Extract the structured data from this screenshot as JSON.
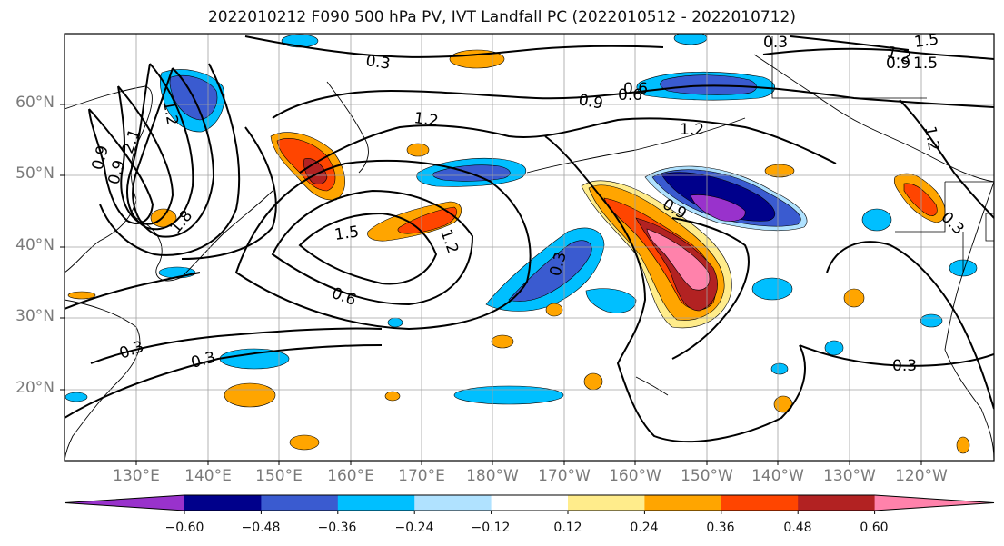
{
  "title": "2022010212 F090 500 hPa PV, IVT Landfall PC (2022010512 - 2022010712)",
  "lat_labels": [
    "60°N",
    "50°N",
    "40°N",
    "30°N",
    "20°N"
  ],
  "lon_labels": [
    "130°E",
    "140°E",
    "150°E",
    "160°E",
    "170°E",
    "180°W",
    "170°W",
    "160°W",
    "150°W",
    "140°W",
    "130°W",
    "120°W"
  ],
  "contour_labels": [
    "0.3",
    "0.6",
    "0.9",
    "1.2",
    "1.5",
    "0.3",
    "1.2",
    "1.2",
    "1.5",
    "0.6",
    "1.2",
    "0.3",
    "0.3",
    "0.9",
    "0.3",
    "0.3",
    "0.6",
    "1.2",
    "1.5",
    "0.9",
    "0.3",
    "1.2",
    "0.9",
    "2.1",
    "1.8",
    "0.9"
  ],
  "colorbar": {
    "ticks": [
      "−0.60",
      "−0.48",
      "−0.36",
      "−0.24",
      "−0.12",
      "0.12",
      "0.24",
      "0.36",
      "0.48",
      "0.60"
    ],
    "colors": [
      "#9932cc",
      "#00008b",
      "#3a5bd0",
      "#00bfff",
      "#b0e2ff",
      "#ffffff",
      "#ffec8b",
      "#ffa500",
      "#ff4500",
      "#b22222",
      "#ff82ab"
    ]
  },
  "palette": {
    "purple": "#9932cc",
    "navy": "#00008b",
    "blue": "#3a5bd0",
    "skyblue": "#00bfff",
    "lightblue": "#b0e2ff",
    "yellow": "#ffec8b",
    "orange": "#ffa500",
    "redorange": "#ff4500",
    "firebrick": "#b22222",
    "pink": "#ff82ab"
  }
}
